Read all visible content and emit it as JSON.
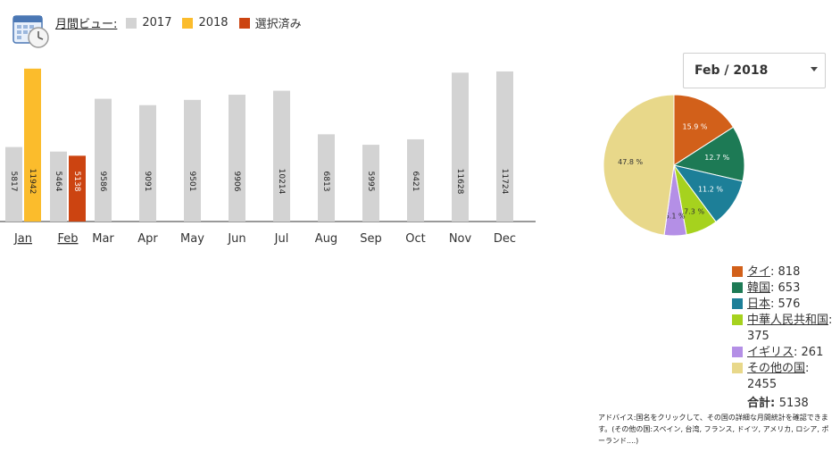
{
  "header": {
    "title": "月間ビュー:",
    "legend": [
      {
        "label": "2017",
        "color": "#d3d3d3"
      },
      {
        "label": "2018",
        "color": "#fbbc2c"
      },
      {
        "label": "選択済み",
        "color": "#cc4411"
      }
    ]
  },
  "selector": {
    "value": "Feb / 2018"
  },
  "chart_data": [
    {
      "type": "bar",
      "categories": [
        "Jan",
        "Feb",
        "Mar",
        "Apr",
        "May",
        "Jun",
        "Jul",
        "Aug",
        "Sep",
        "Oct",
        "Nov",
        "Dec"
      ],
      "linked_categories": [
        "Jan",
        "Feb"
      ],
      "series": [
        {
          "name": "2017",
          "color": "#d3d3d3",
          "values": [
            5817,
            5464,
            9586,
            9091,
            9501,
            9906,
            10214,
            6813,
            5995,
            6421,
            11628,
            11724
          ]
        },
        {
          "name": "2018",
          "color": "#fbbc2c",
          "values": [
            11942,
            5138,
            null,
            null,
            null,
            null,
            null,
            null,
            null,
            null,
            null,
            null
          ]
        }
      ],
      "selected": {
        "category": "Feb",
        "series": "2018",
        "color": "#cc4411"
      },
      "ylim": [
        0,
        12000
      ],
      "grid": false
    },
    {
      "type": "pie",
      "slices": [
        {
          "label": "タイ",
          "value": 818,
          "percent": "15.9 %",
          "color": "#d2601a"
        },
        {
          "label": "韓国",
          "value": 653,
          "percent": "12.7 %",
          "color": "#1d7a55"
        },
        {
          "label": "日本",
          "value": 576,
          "percent": "11.2 %",
          "color": "#1d7f98"
        },
        {
          "label": "中華人民共和国",
          "value": 375,
          "percent": "7.3 %",
          "color": "#a6d21e"
        },
        {
          "label": "イギリス",
          "value": 261,
          "percent": "5.1 %",
          "color": "#b48fe6"
        },
        {
          "label": "その他の国",
          "value": 2455,
          "percent": "47.8 %",
          "color": "#e8d88a"
        }
      ],
      "total_label": "合計:",
      "total": 5138
    }
  ],
  "advice": "アドバイス:国名をクリックして、その国の詳細な月間統計を確認できます。(その他の国:スペイン, 台湾, フランス, ドイツ, アメリカ, ロシア, ポーランド....)"
}
